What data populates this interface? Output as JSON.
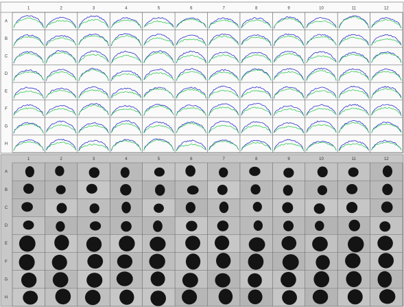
{
  "top_panel": {
    "columns": [
      "1",
      "2",
      "3",
      "4",
      "5",
      "6",
      "7",
      "8",
      "9",
      "10",
      "11",
      "12"
    ],
    "rows": [
      "A",
      "B",
      "C",
      "D",
      "E",
      "F",
      "G",
      "H"
    ]
  },
  "bottom_panel": {
    "columns": [
      "1",
      "2",
      "3",
      "4",
      "5",
      "6",
      "7",
      "8",
      "9",
      "10",
      "11",
      "12"
    ],
    "rows": [
      "A",
      "B",
      "C",
      "D",
      "E",
      "F",
      "G",
      "H"
    ]
  }
}
